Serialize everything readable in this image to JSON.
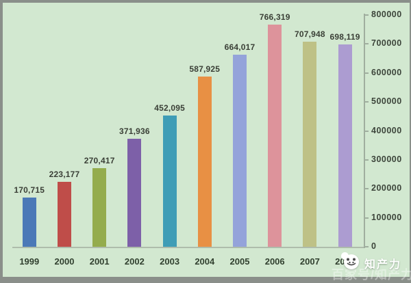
{
  "chart_data": {
    "type": "bar",
    "title": "",
    "xlabel": "",
    "ylabel": "",
    "categories": [
      "1999",
      "2000",
      "2001",
      "2002",
      "2003",
      "2004",
      "2005",
      "2006",
      "2007",
      "2008"
    ],
    "values": [
      170715,
      223177,
      270417,
      371936,
      452095,
      587925,
      664017,
      766319,
      707948,
      698119
    ],
    "value_labels": [
      "170,715",
      "223,177",
      "270,417",
      "371,936",
      "452,095",
      "587,925",
      "664,017",
      "766,319",
      "707,948",
      "698,119"
    ],
    "bar_colors": [
      "#4b79b7",
      "#bf4d49",
      "#94ac4d",
      "#7d60a8",
      "#3f9db6",
      "#e89044",
      "#94a3da",
      "#dd939b",
      "#bec186",
      "#ac9cd1"
    ],
    "ylim": [
      0,
      800000
    ],
    "y_tick_step": 100000,
    "y_tick_labels": [
      "0",
      "100000",
      "200000",
      "300000",
      "400000",
      "500000",
      "600000",
      "700000",
      "800000"
    ],
    "y_axis_side": "right",
    "grid": false,
    "legend": "none",
    "plot_background": "#d2e8d0",
    "frame_color": "#8a8f8a",
    "axis_color": "#9fae9e"
  },
  "watermark": {
    "brand": "知产力",
    "faint_text": "百家号/知产力",
    "logo": "panda-face-logo"
  }
}
